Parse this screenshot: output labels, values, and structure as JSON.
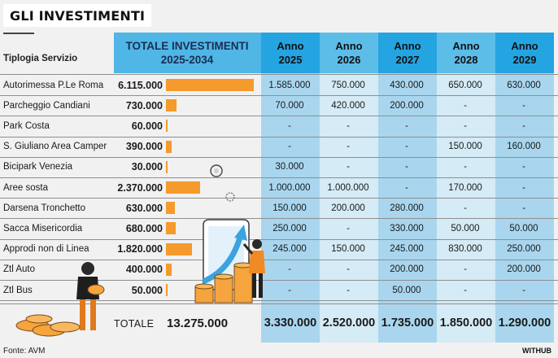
{
  "title": "GLI INVESTIMENTI",
  "colors": {
    "header_total_band": "#4fb6e6",
    "header_year_a": "#25a4e2",
    "header_year_b": "#5cbde9",
    "col_year_a": "#a9d6ee",
    "col_year_b": "#d5ebf6",
    "bar": "#f59a2c"
  },
  "chart_data": {
    "type": "table",
    "service_header": "Tiplogia Servizio",
    "total_header_line1": "TOTALE INVESTIMENTI",
    "total_header_line2": "2025-2034",
    "years": [
      {
        "line1": "Anno",
        "line2": "2025"
      },
      {
        "line1": "Anno",
        "line2": "2026"
      },
      {
        "line1": "Anno",
        "line2": "2027"
      },
      {
        "line1": "Anno",
        "line2": "2028"
      },
      {
        "line1": "Anno",
        "line2": "2029"
      }
    ],
    "bar_max": 6115000,
    "rows": [
      {
        "name": "Autorimessa P.Le Roma",
        "total": "6.115.000",
        "total_value": 6115000,
        "years": [
          "1.585.000",
          "750.000",
          "430.000",
          "650.000",
          "630.000"
        ]
      },
      {
        "name": "Parcheggio Candiani",
        "total": "730.000",
        "total_value": 730000,
        "years": [
          "70.000",
          "420.000",
          "200.000",
          "-",
          "-"
        ]
      },
      {
        "name": "Park Costa",
        "total": "60.000",
        "total_value": 60000,
        "years": [
          "-",
          "-",
          "-",
          "-",
          "-"
        ]
      },
      {
        "name": "S. Giuliano Area Camper",
        "total": "390.000",
        "total_value": 390000,
        "years": [
          "-",
          "-",
          "-",
          "150.000",
          "160.000"
        ]
      },
      {
        "name": "Bicipark Venezia",
        "total": "30.000",
        "total_value": 30000,
        "years": [
          "30.000",
          "-",
          "-",
          "-",
          "-"
        ]
      },
      {
        "name": "Aree sosta",
        "total": "2.370.000",
        "total_value": 2370000,
        "years": [
          "1.000.000",
          "1.000.000",
          "-",
          "170.000",
          "-"
        ]
      },
      {
        "name": "Darsena Tronchetto",
        "total": "630.000",
        "total_value": 630000,
        "years": [
          "150.000",
          "200.000",
          "280.000",
          "-",
          "-"
        ]
      },
      {
        "name": "Sacca Misericordia",
        "total": "680.000",
        "total_value": 680000,
        "years": [
          "250.000",
          "-",
          "330.000",
          "50.000",
          "50.000"
        ]
      },
      {
        "name": "Approdi non di Linea",
        "total": "1.820.000",
        "total_value": 1820000,
        "years": [
          "245.000",
          "150.000",
          "245.000",
          "830.000",
          "250.000"
        ]
      },
      {
        "name": "Ztl Auto",
        "total": "400.000",
        "total_value": 400000,
        "years": [
          "-",
          "-",
          "200.000",
          "-",
          "200.000"
        ]
      },
      {
        "name": "Ztl Bus",
        "total": "50.000",
        "total_value": 50000,
        "years": [
          "-",
          "-",
          "50.000",
          "-",
          "-"
        ]
      }
    ],
    "footer": {
      "label": "TOTALE",
      "total": "13.275.000",
      "years": [
        "3.330.000",
        "2.520.000",
        "1.735.000",
        "1.850.000",
        "1.290.000"
      ]
    }
  },
  "source": "Fonte: AVM",
  "brand": "WITHUB"
}
